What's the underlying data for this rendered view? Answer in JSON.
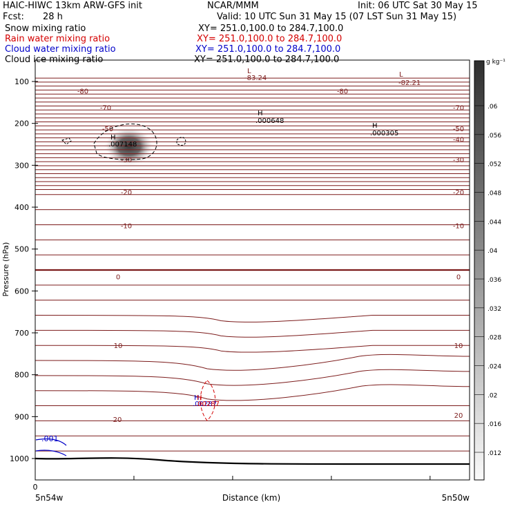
{
  "header": {
    "title": "HAIC-HIWC 13km ARW-GFS init",
    "org": "NCAR/MMM",
    "init": "Init: 06 UTC Sat 30 May 15",
    "fcst_label": "Fcst:",
    "fcst_value": "28 h",
    "valid": "Valid: 10 UTC Sun 31 May 15 (07 LST Sun 31 May 15)"
  },
  "fields": [
    {
      "name": "Snow mixing ratio",
      "xy": "XY= 251.0,100.0 to 284.7,100.0",
      "color": "#000000"
    },
    {
      "name": "Rain water mixing ratio",
      "xy": "XY= 251.0,100.0 to 284.7,100.0",
      "color": "#d40000"
    },
    {
      "name": "Cloud water mixing ratio",
      "xy": "XY= 251.0,100.0 to 284.7,100.0",
      "color": "#0000c8"
    },
    {
      "name": "Cloud ice mixing ratio",
      "xy": "XY= 251.0,100.0 to 284.7,100.0",
      "color": "#000000"
    }
  ],
  "colorbar": {
    "unit": "g kg⁻¹",
    "ticks": [
      ".06",
      ".056",
      ".052",
      ".048",
      ".044",
      ".04",
      ".036",
      ".032",
      ".028",
      ".024",
      ".02",
      ".016",
      ".012"
    ]
  },
  "chart_data": {
    "type": "contour",
    "ylabel": "Pressure (hPa)",
    "xlabel": "Distance (km)",
    "yticks": [
      100,
      200,
      300,
      400,
      500,
      600,
      700,
      800,
      900,
      1000
    ],
    "xtick_zero": "0",
    "x_left_label": "5n54w",
    "x_right_label": "5n50w",
    "isotherms": {
      "color": "#7b1a1a",
      "levels": [
        -80,
        -70,
        -60,
        -50,
        -40,
        -30,
        -20,
        -10,
        0,
        10,
        20
      ],
      "labels": [
        {
          "text": "-80",
          "p": 122,
          "side": "left"
        },
        {
          "text": "-80",
          "p": 122,
          "side": "mid"
        },
        {
          "text": "-70",
          "p": 162,
          "side": "left"
        },
        {
          "text": "-70",
          "p": 162,
          "side": "right"
        },
        {
          "text": "-50",
          "p": 212,
          "side": "left"
        },
        {
          "text": "-50",
          "p": 212,
          "side": "right"
        },
        {
          "text": "-40",
          "p": 238,
          "side": "right"
        },
        {
          "text": "-30",
          "p": 286,
          "side": "left"
        },
        {
          "text": "-30",
          "p": 286,
          "side": "right"
        },
        {
          "text": "-20",
          "p": 364,
          "side": "left"
        },
        {
          "text": "-20",
          "p": 364,
          "side": "right"
        },
        {
          "text": "-10",
          "p": 444,
          "side": "left"
        },
        {
          "text": "-10",
          "p": 444,
          "side": "right"
        },
        {
          "text": "0",
          "p": 566,
          "side": "left"
        },
        {
          "text": "0",
          "p": 566,
          "side": "right"
        },
        {
          "text": "10",
          "p": 730,
          "side": "left"
        },
        {
          "text": "10",
          "p": 730,
          "side": "right"
        },
        {
          "text": "20",
          "p": 906,
          "side": "left"
        },
        {
          "text": "20",
          "p": 896,
          "side": "right"
        }
      ]
    },
    "extrema": [
      {
        "mark": "L",
        "value": "-83.24",
        "color": "#7b1a1a"
      },
      {
        "mark": "L",
        "value": "-82.21",
        "color": "#7b1a1a"
      },
      {
        "mark": "H",
        "value": ".000648",
        "color": "#000000"
      },
      {
        "mark": "H",
        "value": ".000305",
        "color": "#000000"
      },
      {
        "mark": "H",
        "value": ".007148",
        "color": "#000000"
      },
      {
        "mark": "H",
        "value": ".00287",
        "color": "#0000c8"
      },
      {
        "mark": "H",
        "value": ".00287",
        "color": "#d40000"
      }
    ],
    "cloud_water_label": ".001"
  }
}
